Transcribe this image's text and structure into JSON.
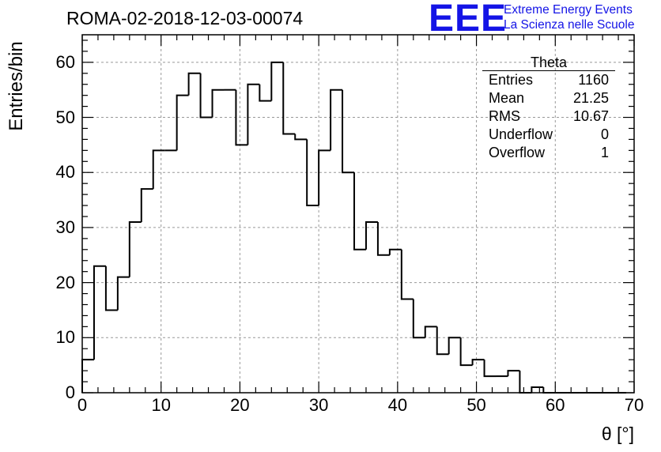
{
  "colors": {
    "logo": "#1414e6",
    "line": "#000000",
    "grid": "#999999",
    "background": "#ffffff"
  },
  "logo": {
    "mark": "EEE",
    "line1": "Extreme Energy Events",
    "line2": "La Scienza nelle Scuole"
  },
  "stats": {
    "title": "Theta",
    "rows": [
      {
        "label": "Entries",
        "value": "1160"
      },
      {
        "label": "Mean",
        "value": "21.25"
      },
      {
        "label": "RMS",
        "value": "10.67"
      },
      {
        "label": "Underflow",
        "value": "0"
      },
      {
        "label": "Overflow",
        "value": "1"
      }
    ]
  },
  "chart_data": {
    "type": "bar",
    "title": "ROMA-02-2018-12-03-00074",
    "xlabel": "θ [°]",
    "ylabel": "Entries/bin",
    "xlim": [
      0,
      70
    ],
    "ylim": [
      0,
      65
    ],
    "x_ticks": [
      0,
      10,
      20,
      30,
      40,
      50,
      60,
      70
    ],
    "y_ticks": [
      0,
      10,
      20,
      30,
      40,
      50,
      60
    ],
    "grid": true,
    "legend_position": "top-right",
    "bin_width": 1.5,
    "bin_edges_start": 0,
    "values": [
      6,
      23,
      15,
      21,
      31,
      37,
      44,
      44,
      54,
      58,
      50,
      55,
      55,
      45,
      56,
      53,
      60,
      47,
      46,
      34,
      44,
      55,
      40,
      26,
      31,
      25,
      26,
      17,
      10,
      12,
      7,
      10,
      5,
      6,
      3,
      3,
      4,
      0,
      1,
      0,
      0,
      0,
      0,
      0,
      0,
      0
    ]
  }
}
